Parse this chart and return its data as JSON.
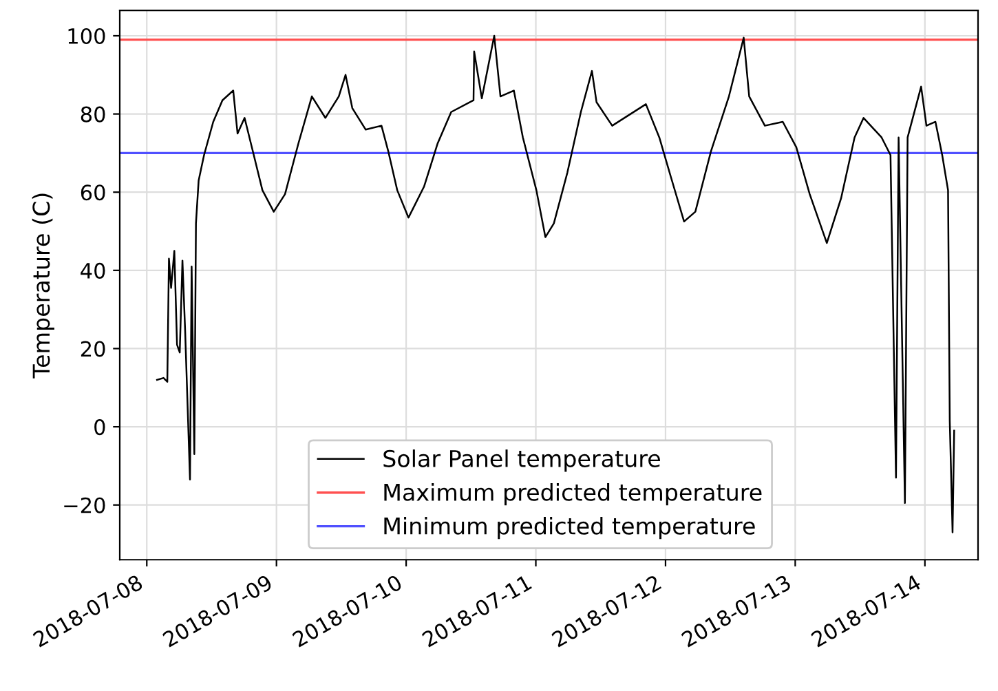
{
  "chart_data": {
    "type": "line",
    "ylabel": "Temperature (C)",
    "xlim": [
      "2018-07-07T19:00",
      "2018-07-14T09:50"
    ],
    "xticks": [
      {
        "value": "2018-07-08",
        "label": "2018-07-08"
      },
      {
        "value": "2018-07-09",
        "label": "2018-07-09"
      },
      {
        "value": "2018-07-10",
        "label": "2018-07-10"
      },
      {
        "value": "2018-07-11",
        "label": "2018-07-11"
      },
      {
        "value": "2018-07-12",
        "label": "2018-07-12"
      },
      {
        "value": "2018-07-13",
        "label": "2018-07-13"
      },
      {
        "value": "2018-07-14",
        "label": "2018-07-14"
      }
    ],
    "ylim": [
      -34,
      106.5
    ],
    "yticks": [
      {
        "value": -20,
        "label": "−20"
      },
      0,
      20,
      40,
      60,
      80,
      100
    ],
    "grid": true,
    "legend": "bottom",
    "marker": "none",
    "line_style": "solid",
    "series": [
      {
        "name": "Solar Panel temperature",
        "color": "#000000",
        "x": [
          "2018-07-08T01:54",
          "2018-07-08T03:06",
          "2018-07-08T03:48",
          "2018-07-08T04:06",
          "2018-07-08T04:30",
          "2018-07-08T05:06",
          "2018-07-08T05:36",
          "2018-07-08T06:06",
          "2018-07-08T06:36",
          "2018-07-08T07:06",
          "2018-07-08T08:00",
          "2018-07-08T08:18",
          "2018-07-08T08:48",
          "2018-07-08T09:06",
          "2018-07-08T09:36",
          "2018-07-08T10:36",
          "2018-07-08T12:18",
          "2018-07-08T14:00",
          "2018-07-08T16:00",
          "2018-07-08T16:48",
          "2018-07-08T18:06",
          "2018-07-08T19:48",
          "2018-07-08T21:24",
          "2018-07-08T23:30",
          "2018-07-09T01:35",
          "2018-07-09T04:04",
          "2018-07-09T06:33",
          "2018-07-09T09:03",
          "2018-07-09T11:32",
          "2018-07-09T12:47",
          "2018-07-09T14:02",
          "2018-07-09T16:31",
          "2018-07-09T19:26",
          "2018-07-09T20:41",
          "2018-07-09T22:21",
          "2018-07-10T00:26",
          "2018-07-10T03:20",
          "2018-07-10T05:50",
          "2018-07-10T08:20",
          "2018-07-10T12:28",
          "2018-07-10T12:35",
          "2018-07-10T14:00",
          "2018-07-10T16:18",
          "2018-07-10T17:27",
          "2018-07-10T19:56",
          "2018-07-10T21:36",
          "2018-07-11T00:06",
          "2018-07-11T01:46",
          "2018-07-11T03:20",
          "2018-07-11T05:50",
          "2018-07-11T08:20",
          "2018-07-11T10:23",
          "2018-07-11T11:14",
          "2018-07-11T14:08",
          "2018-07-11T20:22",
          "2018-07-11T22:51",
          "2018-07-12T00:58",
          "2018-07-12T03:26",
          "2018-07-12T05:31",
          "2018-07-12T08:25",
          "2018-07-12T11:44",
          "2018-07-12T14:28",
          "2018-07-12T15:29",
          "2018-07-12T18:23",
          "2018-07-12T21:42",
          "2018-07-13T00:12",
          "2018-07-13T02:41",
          "2018-07-13T05:51",
          "2018-07-13T08:30",
          "2018-07-13T10:59",
          "2018-07-13T12:39",
          "2018-07-13T15:59",
          "2018-07-13T17:38",
          "2018-07-13T18:39",
          "2018-07-13T19:08",
          "2018-07-13T20:18",
          "2018-07-13T20:48",
          "2018-07-13T23:18",
          "2018-07-14T00:17",
          "2018-07-14T01:57",
          "2018-07-14T03:12",
          "2018-07-14T04:17",
          "2018-07-14T04:36",
          "2018-07-14T05:07",
          "2018-07-14T05:25"
        ],
        "values": [
          12,
          12.5,
          11.5,
          43,
          35.5,
          45,
          21,
          19,
          42.5,
          24.5,
          -13.5,
          41,
          -7,
          52,
          63,
          69.5,
          78,
          83.5,
          86,
          75,
          79,
          69.5,
          60.5,
          55,
          59.5,
          72.5,
          84.5,
          79,
          84.5,
          90,
          81.5,
          76,
          77,
          70.5,
          60.5,
          53.5,
          61.5,
          72.5,
          80.5,
          83.5,
          96,
          84,
          100,
          84.5,
          86,
          74,
          60.5,
          48.5,
          52,
          65,
          80.5,
          91,
          83,
          77,
          82.5,
          74,
          64,
          52.5,
          55,
          70.5,
          84.5,
          99.5,
          84.5,
          77,
          78,
          71.5,
          59.5,
          47,
          58.5,
          74,
          79,
          74,
          69.5,
          -13,
          74,
          -19.5,
          74,
          87,
          77,
          78,
          69.5,
          60.5,
          1.5,
          -27,
          -1
        ]
      }
    ],
    "ref_lines": [
      {
        "axis": "y",
        "value": 99,
        "label": "Maximum predicted temperature",
        "color": "#ff5050"
      },
      {
        "axis": "y",
        "value": 70,
        "label": "Minimum predicted temperature",
        "color": "#5050ff"
      }
    ]
  }
}
